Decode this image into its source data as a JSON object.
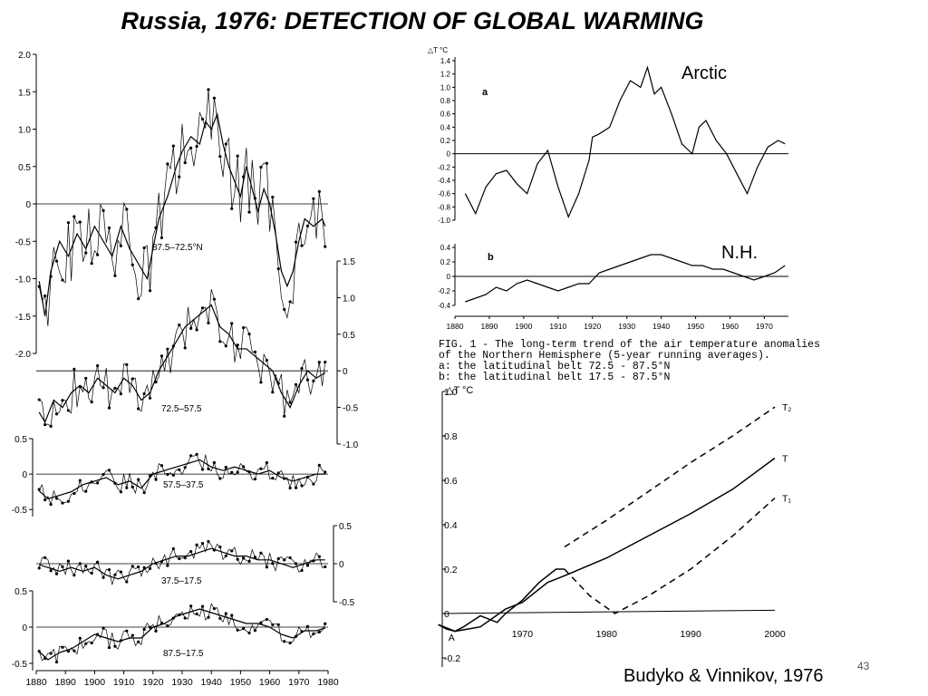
{
  "slide": {
    "title": "Russia, 1976:  DETECTION OF GLOBAL WARMING",
    "footer": "Budyko & Vinnikov, 1976",
    "page_number": "43",
    "caption_lines": [
      "FIG. 1 - The long-term trend of the air temperature anomalies",
      "of the Northern Hemisphere (5-year running averages).",
      "a: the latitudinal belt 72.5 - 87.5°N",
      "b: the latitudinal belt 17.5 - 87.5°N"
    ]
  },
  "chart_data": [
    {
      "id": "belts",
      "type": "line",
      "x_ticks": [
        "1880",
        "1890",
        "1900",
        "1910",
        "1920",
        "1930",
        "1940",
        "1950",
        "1960",
        "1970",
        "1980"
      ],
      "x_range": [
        1880,
        1980
      ],
      "panels": [
        {
          "label": "87.5–72.5°N",
          "ylim": [
            -2,
            2
          ],
          "y_ticks_left": [
            "2.0",
            "1.5",
            "1.0",
            "0.5",
            "0",
            "-0.5",
            "-1.0",
            "-1.5",
            "-2.0"
          ],
          "anchors": [
            [
              1880,
              -0.8
            ],
            [
              1883,
              -1.5
            ],
            [
              1885,
              -0.9
            ],
            [
              1888,
              -0.5
            ],
            [
              1891,
              -0.7
            ],
            [
              1894,
              -0.4
            ],
            [
              1897,
              -0.6
            ],
            [
              1900,
              -0.3
            ],
            [
              1903,
              -0.5
            ],
            [
              1906,
              -0.7
            ],
            [
              1909,
              -0.3
            ],
            [
              1912,
              -0.6
            ],
            [
              1915,
              -0.8
            ],
            [
              1918,
              -1.0
            ],
            [
              1920,
              -0.6
            ],
            [
              1922,
              -0.2
            ],
            [
              1925,
              0.1
            ],
            [
              1928,
              0.5
            ],
            [
              1930,
              0.7
            ],
            [
              1933,
              0.9
            ],
            [
              1936,
              0.8
            ],
            [
              1938,
              1.1
            ],
            [
              1940,
              1.0
            ],
            [
              1942,
              1.2
            ],
            [
              1944,
              0.8
            ],
            [
              1946,
              0.5
            ],
            [
              1948,
              0.3
            ],
            [
              1950,
              0.1
            ],
            [
              1952,
              0.5
            ],
            [
              1954,
              0.2
            ],
            [
              1956,
              -0.1
            ],
            [
              1958,
              0.2
            ],
            [
              1960,
              0.0
            ],
            [
              1962,
              -0.4
            ],
            [
              1964,
              -0.9
            ],
            [
              1966,
              -1.1
            ],
            [
              1968,
              -0.9
            ],
            [
              1970,
              -0.5
            ],
            [
              1972,
              -0.2
            ],
            [
              1975,
              -0.3
            ],
            [
              1978,
              -0.2
            ],
            [
              1980,
              -0.4
            ]
          ]
        },
        {
          "label": "72.5–57.5",
          "ylim": [
            -1.0,
            1.5
          ],
          "y_ticks_right": [
            "1.5",
            "1.0",
            "0.5",
            "0",
            "-0.5",
            "-1.0"
          ],
          "anchors": [
            [
              1880,
              -0.5
            ],
            [
              1883,
              -0.7
            ],
            [
              1886,
              -0.4
            ],
            [
              1889,
              -0.5
            ],
            [
              1892,
              -0.3
            ],
            [
              1895,
              -0.2
            ],
            [
              1898,
              -0.3
            ],
            [
              1901,
              -0.1
            ],
            [
              1904,
              -0.2
            ],
            [
              1907,
              -0.3
            ],
            [
              1910,
              -0.1
            ],
            [
              1913,
              -0.2
            ],
            [
              1916,
              -0.4
            ],
            [
              1919,
              -0.3
            ],
            [
              1922,
              0.0
            ],
            [
              1925,
              0.2
            ],
            [
              1928,
              0.4
            ],
            [
              1931,
              0.6
            ],
            [
              1934,
              0.7
            ],
            [
              1937,
              0.8
            ],
            [
              1940,
              0.9
            ],
            [
              1943,
              0.6
            ],
            [
              1946,
              0.5
            ],
            [
              1949,
              0.3
            ],
            [
              1952,
              0.3
            ],
            [
              1955,
              0.2
            ],
            [
              1958,
              0.1
            ],
            [
              1961,
              0.0
            ],
            [
              1964,
              -0.3
            ],
            [
              1967,
              -0.5
            ],
            [
              1970,
              -0.2
            ],
            [
              1973,
              0.0
            ],
            [
              1976,
              -0.1
            ],
            [
              1980,
              0.0
            ]
          ]
        },
        {
          "label": "57.5–37.5",
          "ylim": [
            -0.6,
            0.5
          ],
          "y_ticks_left": [
            "0.5",
            "0",
            "-0.5"
          ],
          "anchors": [
            [
              1880,
              -0.2
            ],
            [
              1884,
              -0.35
            ],
            [
              1888,
              -0.3
            ],
            [
              1892,
              -0.25
            ],
            [
              1896,
              -0.15
            ],
            [
              1900,
              -0.1
            ],
            [
              1904,
              -0.05
            ],
            [
              1908,
              -0.15
            ],
            [
              1912,
              -0.1
            ],
            [
              1916,
              -0.2
            ],
            [
              1920,
              0.0
            ],
            [
              1924,
              0.05
            ],
            [
              1928,
              0.1
            ],
            [
              1932,
              0.15
            ],
            [
              1936,
              0.2
            ],
            [
              1940,
              0.1
            ],
            [
              1944,
              0.05
            ],
            [
              1948,
              0.1
            ],
            [
              1952,
              0.05
            ],
            [
              1956,
              0.0
            ],
            [
              1960,
              0.05
            ],
            [
              1964,
              -0.05
            ],
            [
              1968,
              -0.1
            ],
            [
              1972,
              -0.05
            ],
            [
              1976,
              0.0
            ],
            [
              1980,
              0.0
            ]
          ]
        },
        {
          "label": "37.5–17.5",
          "ylim": [
            -0.5,
            0.5
          ],
          "y_ticks_right": [
            "0.5",
            "0",
            "-0.5"
          ],
          "anchors": [
            [
              1880,
              0.0
            ],
            [
              1884,
              -0.05
            ],
            [
              1888,
              -0.1
            ],
            [
              1892,
              -0.05
            ],
            [
              1896,
              -0.1
            ],
            [
              1900,
              -0.05
            ],
            [
              1904,
              -0.15
            ],
            [
              1908,
              -0.2
            ],
            [
              1912,
              -0.15
            ],
            [
              1916,
              -0.1
            ],
            [
              1920,
              0.0
            ],
            [
              1924,
              0.05
            ],
            [
              1928,
              0.1
            ],
            [
              1932,
              0.1
            ],
            [
              1936,
              0.15
            ],
            [
              1940,
              0.2
            ],
            [
              1944,
              0.15
            ],
            [
              1948,
              0.1
            ],
            [
              1952,
              0.1
            ],
            [
              1956,
              0.05
            ],
            [
              1960,
              0.05
            ],
            [
              1964,
              0.0
            ],
            [
              1968,
              -0.05
            ],
            [
              1972,
              0.0
            ],
            [
              1976,
              0.05
            ],
            [
              1980,
              0.05
            ]
          ]
        },
        {
          "label": "87.5–17.5",
          "ylim": [
            -0.6,
            0.5
          ],
          "y_ticks_left": [
            "0.5",
            "0",
            "-0.5"
          ],
          "anchors": [
            [
              1880,
              -0.3
            ],
            [
              1884,
              -0.45
            ],
            [
              1888,
              -0.35
            ],
            [
              1892,
              -0.3
            ],
            [
              1896,
              -0.2
            ],
            [
              1900,
              -0.1
            ],
            [
              1904,
              -0.15
            ],
            [
              1908,
              -0.2
            ],
            [
              1912,
              -0.15
            ],
            [
              1916,
              -0.15
            ],
            [
              1920,
              0.0
            ],
            [
              1924,
              0.05
            ],
            [
              1928,
              0.15
            ],
            [
              1932,
              0.2
            ],
            [
              1936,
              0.25
            ],
            [
              1940,
              0.2
            ],
            [
              1944,
              0.15
            ],
            [
              1948,
              0.1
            ],
            [
              1952,
              0.05
            ],
            [
              1956,
              0.05
            ],
            [
              1960,
              0.0
            ],
            [
              1964,
              -0.1
            ],
            [
              1968,
              -0.15
            ],
            [
              1972,
              -0.05
            ],
            [
              1976,
              -0.05
            ],
            [
              1980,
              0.0
            ]
          ]
        }
      ]
    },
    {
      "id": "arctic",
      "type": "line",
      "panel_letter": "a",
      "annotation": "Arctic",
      "y_axis_label": "△T °C",
      "ylim": [
        -1.0,
        1.4
      ],
      "y_ticks": [
        "1.4",
        "1.2",
        "1.0",
        "0.8",
        "0.6",
        "0.4",
        "0.2",
        "0",
        "-0.2",
        "-0.4",
        "-0.6",
        "-0.8",
        "-1.0"
      ],
      "x": [
        1883,
        1886,
        1889,
        1892,
        1895,
        1898,
        1901,
        1904,
        1907,
        1910,
        1913,
        1916,
        1919,
        1920,
        1922,
        1925,
        1928,
        1931,
        1934,
        1936,
        1938,
        1940,
        1943,
        1946,
        1949,
        1951,
        1953,
        1956,
        1959,
        1962,
        1965,
        1968,
        1971,
        1974,
        1976
      ],
      "values": [
        -0.6,
        -0.9,
        -0.5,
        -0.3,
        -0.25,
        -0.45,
        -0.6,
        -0.15,
        0.05,
        -0.5,
        -0.95,
        -0.6,
        -0.1,
        0.25,
        0.3,
        0.4,
        0.8,
        1.1,
        1.0,
        1.3,
        0.9,
        1.0,
        0.6,
        0.15,
        0.0,
        0.4,
        0.5,
        0.2,
        0.0,
        -0.3,
        -0.6,
        -0.2,
        0.1,
        0.2,
        0.15
      ]
    },
    {
      "id": "nh",
      "type": "line",
      "panel_letter": "b",
      "annotation": "N.H.",
      "ylim": [
        -0.4,
        0.4
      ],
      "y_ticks": [
        "0.4",
        "0.2",
        "0",
        "-0.2",
        "-0.4"
      ],
      "x_ticks": [
        "1880",
        "1890",
        "1900",
        "1910",
        "1920",
        "1930",
        "1940",
        "1950",
        "1960",
        "1970"
      ],
      "x_range": [
        1880,
        1977
      ],
      "x": [
        1883,
        1886,
        1889,
        1892,
        1895,
        1898,
        1901,
        1904,
        1907,
        1910,
        1913,
        1916,
        1919,
        1922,
        1925,
        1928,
        1931,
        1934,
        1937,
        1940,
        1943,
        1946,
        1949,
        1952,
        1955,
        1958,
        1961,
        1964,
        1967,
        1970,
        1973,
        1976
      ],
      "values": [
        -0.35,
        -0.3,
        -0.25,
        -0.15,
        -0.2,
        -0.1,
        -0.05,
        -0.1,
        -0.15,
        -0.2,
        -0.15,
        -0.1,
        -0.1,
        0.05,
        0.1,
        0.15,
        0.2,
        0.25,
        0.3,
        0.3,
        0.25,
        0.2,
        0.15,
        0.15,
        0.1,
        0.1,
        0.05,
        0.0,
        -0.05,
        0.0,
        0.05,
        0.15
      ]
    },
    {
      "id": "forecast",
      "type": "line",
      "y_axis_label": "△T °C",
      "ylim": [
        -0.2,
        1.0
      ],
      "x_range": [
        1960,
        2000
      ],
      "y_ticks": [
        "1.0",
        "0.8",
        "0.6",
        "0.4",
        "0.2",
        "0",
        "-0.2"
      ],
      "x_ticks": [
        "1970",
        "1980",
        "1990",
        "2000"
      ],
      "point_label": "A",
      "series": [
        {
          "name": "T₂",
          "style": "dashed",
          "x": [
            1975,
            1980,
            1985,
            1990,
            1995,
            2000
          ],
          "values": [
            0.3,
            0.42,
            0.55,
            0.68,
            0.8,
            0.93
          ]
        },
        {
          "name": "T",
          "style": "solid",
          "x": [
            1960,
            1962,
            1965,
            1968,
            1970,
            1973,
            1975,
            1980,
            1985,
            1990,
            1995,
            2000
          ],
          "values": [
            -0.05,
            -0.08,
            -0.06,
            0.02,
            0.05,
            0.14,
            0.17,
            0.25,
            0.35,
            0.45,
            0.56,
            0.7
          ]
        },
        {
          "name": "T₁",
          "style": "dashed",
          "x": [
            1975,
            1978,
            1981,
            1985,
            1990,
            1995,
            2000
          ],
          "values": [
            0.2,
            0.08,
            0.0,
            0.08,
            0.2,
            0.35,
            0.52
          ]
        },
        {
          "name": "",
          "style": "solid",
          "x": [
            1960,
            1961,
            1962,
            1963,
            1965,
            1967,
            1968,
            1970,
            1972,
            1974,
            1975
          ],
          "values": [
            -0.05,
            -0.07,
            -0.08,
            -0.06,
            -0.01,
            -0.04,
            0.0,
            0.06,
            0.14,
            0.2,
            0.2
          ]
        }
      ]
    }
  ]
}
